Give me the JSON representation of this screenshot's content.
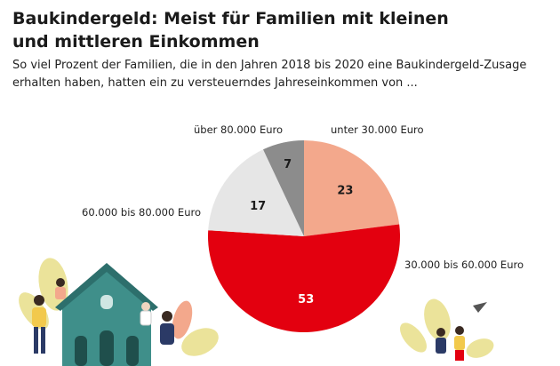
{
  "header": {
    "title_line1": "Baukindergeld: Meist für Familien mit kleinen",
    "title_line2": "und mittleren Einkommen",
    "subtitle_line1": "So viel Prozent der Familien, die in den Jahren 2018 bis 2020 eine Baukindergeld-Zusage",
    "subtitle_line2": "erhalten haben, hatten ein zu versteuerndes Jahreseinkommen von ..."
  },
  "chart_data": {
    "type": "pie",
    "title": "Baukindergeld: Meist für Familien mit kleinen und mittleren Einkommen",
    "start_angle_deg": 0,
    "direction": "clockwise",
    "slices": [
      {
        "label": "unter 30.000 Euro",
        "value": 23,
        "color": "#f3a88c",
        "value_color": "#1a1a1a"
      },
      {
        "label": "30.000 bis 60.000 Euro",
        "value": 53,
        "color": "#e3000f",
        "value_color": "#ffffff"
      },
      {
        "label": "60.000 bis 80.000 Euro",
        "value": 17,
        "color": "#e6e6e6",
        "value_color": "#1a1a1a"
      },
      {
        "label": "über 80.000 Euro",
        "value": 7,
        "color": "#8c8c8c",
        "value_color": "#1a1a1a"
      }
    ]
  },
  "illustration": {
    "house_color": "#3f8f8a",
    "roof_color": "#2d6f6c",
    "leaf_color": "#e8e08a",
    "accent_color": "#f3a88c"
  }
}
